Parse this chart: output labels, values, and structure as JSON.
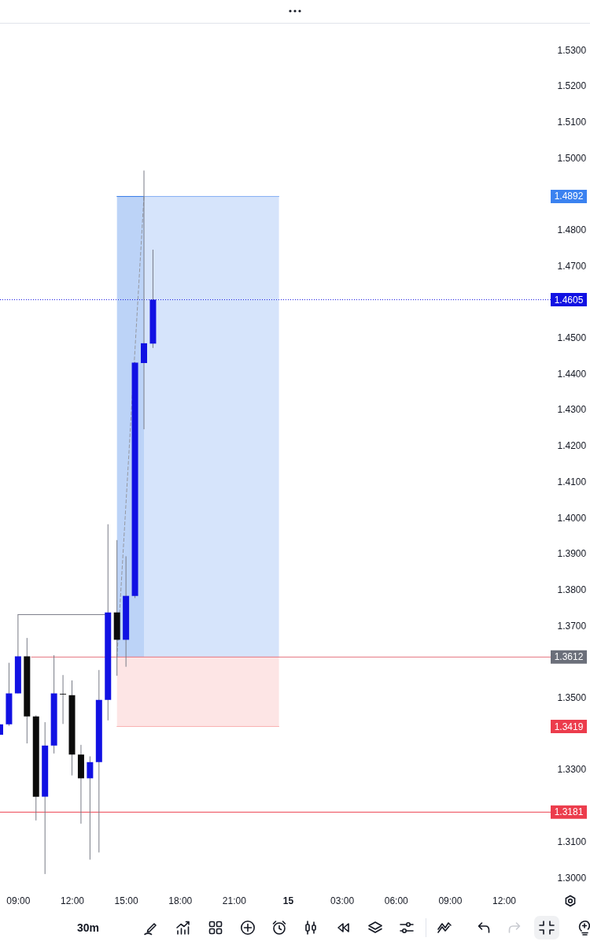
{
  "chart_data": {
    "type": "candlestick",
    "x": [
      "--10-14T08:00",
      "--10-14T08:30",
      "--10-14T09:00",
      "--10-14T09:30",
      "--10-14T10:00",
      "--10-14T10:30",
      "--10-14T11:00",
      "--10-14T11:30",
      "--10-14T12:00",
      "--10-14T12:30",
      "--10-14T13:00",
      "--10-14T13:30",
      "--10-14T14:00",
      "--10-14T14:30",
      "--10-14T15:00",
      "--10-14T15:30",
      "--10-14T16:00",
      "--10-14T16:30"
    ],
    "ohlc": [
      [
        1.3396,
        1.3425,
        1.3396,
        1.3425
      ],
      [
        1.3425,
        1.3596,
        1.3421,
        1.3511
      ],
      [
        1.3511,
        1.373,
        1.3511,
        1.3614
      ],
      [
        1.3614,
        1.3665,
        1.3372,
        1.3447
      ],
      [
        1.3447,
        1.345,
        1.3158,
        1.3224
      ],
      [
        1.3224,
        1.3431,
        1.3009,
        1.3366
      ],
      [
        1.3366,
        1.3617,
        1.3344,
        1.3511
      ],
      [
        1.351,
        1.3562,
        1.3426,
        1.3508
      ],
      [
        1.3506,
        1.3547,
        1.3283,
        1.3341
      ],
      [
        1.3341,
        1.3368,
        1.3149,
        1.3275
      ],
      [
        1.3275,
        1.3336,
        1.3049,
        1.332
      ],
      [
        1.332,
        1.3576,
        1.3069,
        1.3493
      ],
      [
        1.3493,
        1.3981,
        1.3436,
        1.3736
      ],
      [
        1.3736,
        1.3937,
        1.356,
        1.366
      ],
      [
        1.366,
        1.3892,
        1.3585,
        1.3782
      ],
      [
        1.3782,
        1.4432,
        1.3776,
        1.443
      ],
      [
        1.4429,
        1.4964,
        1.4245,
        1.4484
      ],
      [
        1.4483,
        1.4744,
        1.4471,
        1.4605
      ]
    ],
    "colors": [
      "#1111e3",
      "#1111e3",
      "#1111e3",
      "#0b0b0b",
      "#0b0b0b",
      "#1111e3",
      "#1111e3",
      "#0b0b0b",
      "#0b0b0b",
      "#0b0b0b",
      "#1111e3",
      "#1111e3",
      "#1111e3",
      "#0b0b0b",
      "#1111e3",
      "#1111e3",
      "#1111e3",
      "#1111e3"
    ],
    "series": [
      {
        "type": "line",
        "x": [
          "--10-14T14:30",
          "--10-14T16:00"
        ],
        "values": [
          1.4892,
          1.4892
        ],
        "lower": [
          1.3612,
          1.3612
        ],
        "upper": [
          1.4892,
          1.4892
        ],
        "color": "#347ae7"
      },
      {
        "type": "line",
        "x": [
          "--10-14T16:00",
          "--10-14T23:30"
        ],
        "values": [
          1.4892,
          1.4892
        ],
        "lower": [
          1.3612,
          1.3612
        ],
        "upper": [
          1.4892,
          1.4892
        ],
        "color": "#83adf3"
      },
      {
        "type": "line",
        "x": [
          "--10-14T14:30",
          "--10-14T23:30"
        ],
        "values": [
          1.3419,
          1.3419
        ],
        "lower": [
          1.3419,
          1.3419
        ],
        "upper": [
          1.3612,
          1.3612
        ],
        "color": "#f9b0b0"
      },
      {
        "type": "line",
        "x": [
          "--10-14T09:00",
          "--10-14T14:00"
        ],
        "values": [
          1.373,
          1.373
        ],
        "color": "#787b86",
        "line_style": "solid"
      },
      {
        "type": "line",
        "x": [
          "--10-14T09:45",
          "--10-15T14:36"
        ],
        "values": [
          1.3612,
          1.3612
        ],
        "color": "#e5737e",
        "line_style": "solid"
      },
      {
        "type": "line",
        "x": [
          "--10-14T14:30",
          "--10-14T16:00"
        ],
        "values": [
          1.3612,
          1.4892
        ],
        "color": "#9598a1",
        "line_style": "dashed"
      }
    ],
    "xlim": [
      "--10-14T08:00",
      "--10-15T14:36"
    ],
    "xticks": [
      {
        "value": "--10-14T09:00",
        "label": "09:00"
      },
      {
        "value": "--10-14T12:00",
        "label": "12:00"
      },
      {
        "value": "--10-14T15:00",
        "label": "15:00"
      },
      {
        "value": "--10-14T18:00",
        "label": "18:00"
      },
      {
        "value": "--10-14T21:00",
        "label": "21:00"
      },
      {
        "value": "--10-15T00:00",
        "label": "15"
      },
      {
        "value": "--10-15T03:00",
        "label": "03:00"
      },
      {
        "value": "--10-15T06:00",
        "label": "06:00"
      },
      {
        "value": "--10-15T09:00",
        "label": "09:00"
      },
      {
        "value": "--10-15T12:00",
        "label": "12:00"
      }
    ],
    "ylim": [
      1.3,
      1.53
    ],
    "yticks": [
      {
        "value": 1.3,
        "label": "1.3000"
      },
      {
        "value": 1.31,
        "label": "1.3100"
      },
      {
        "value": 1.33,
        "label": "1.3300"
      },
      {
        "value": 1.35,
        "label": "1.3500"
      },
      {
        "value": 1.37,
        "label": "1.3700"
      },
      {
        "value": 1.38,
        "label": "1.3800"
      },
      {
        "value": 1.39,
        "label": "1.3900"
      },
      {
        "value": 1.4,
        "label": "1.4000"
      },
      {
        "value": 1.41,
        "label": "1.4100"
      },
      {
        "value": 1.42,
        "label": "1.4200"
      },
      {
        "value": 1.43,
        "label": "1.4300"
      },
      {
        "value": 1.44,
        "label": "1.4400"
      },
      {
        "value": 1.45,
        "label": "1.4500"
      },
      {
        "value": 1.47,
        "label": "1.4700"
      },
      {
        "value": 1.48,
        "label": "1.4800"
      },
      {
        "value": 1.5,
        "label": "1.5000"
      },
      {
        "value": 1.51,
        "label": "1.5100"
      },
      {
        "value": 1.52,
        "label": "1.5200"
      },
      {
        "value": 1.53,
        "label": "1.5300"
      }
    ],
    "ref_lines": [
      {
        "axis": "y",
        "value": 1.4605,
        "label": "1.4605",
        "color": "#1111e3",
        "line_style": "dotted"
      },
      {
        "axis": "y",
        "value": 1.3181,
        "label": "1.3181",
        "color": "#ec3c4c",
        "line_style": "solid"
      }
    ],
    "annotations": [
      "1.4892",
      "1.3612",
      "1.3419",
      "30m"
    ],
    "grid": false
  }
}
